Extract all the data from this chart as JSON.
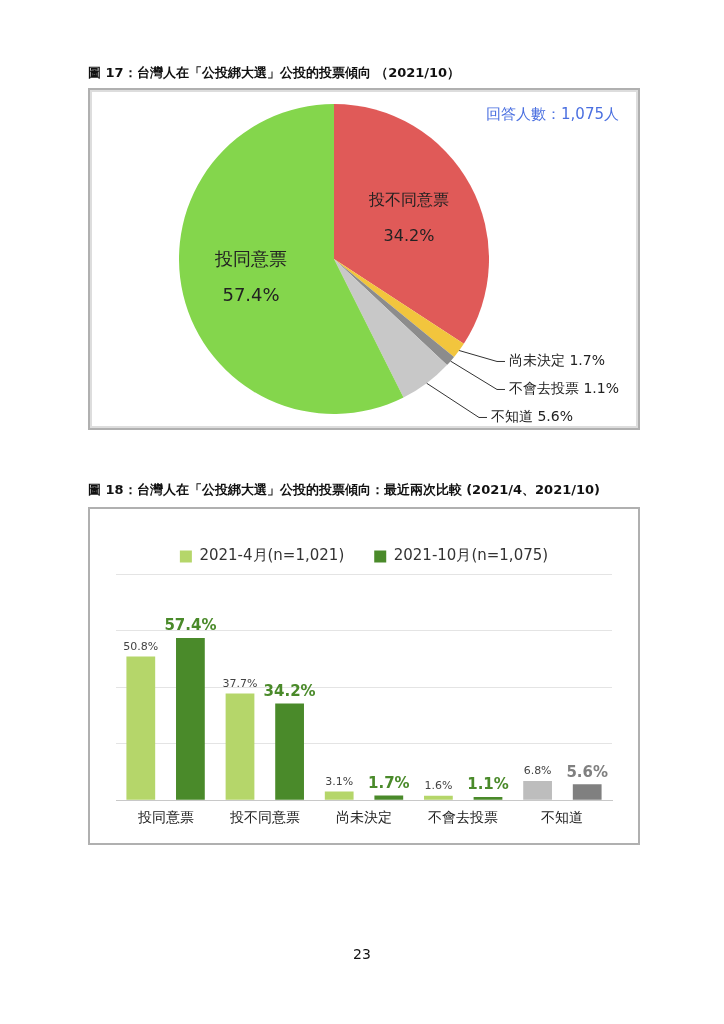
{
  "chart_data": [
    {
      "type": "pie",
      "title": "圖 17：台灣人在「公投綁大選」公投的投票傾向 （2021/10）",
      "categories": [
        "投不同意票",
        "尚未決定",
        "不會去投票",
        "不知道",
        "投同意票"
      ],
      "values": [
        34.2,
        1.7,
        1.1,
        5.6,
        57.4
      ],
      "value_labels": [
        "34.2%",
        "1.7%",
        "1.1%",
        "5.6%",
        "57.4%"
      ],
      "colors": [
        "#e05a58",
        "#f2c53d",
        "#8c8c8c",
        "#c8c8c8",
        "#84d64c"
      ],
      "annotations": [
        "回答人數：1,075人"
      ]
    },
    {
      "type": "bar",
      "title": "圖 18：台灣人在「公投綁大選」公投的投票傾向：最近兩次比較 (2021/4、2021/10)",
      "categories": [
        "投同意票",
        "投不同意票",
        "尚未決定",
        "不會去投票",
        "不知道"
      ],
      "series": [
        {
          "name": "2021-4月(n=1,021)",
          "color": "#b5d66a",
          "colors": [
            "#b5d66a",
            "#b5d66a",
            "#b5d66a",
            "#b5d66a",
            "#bdbdbd"
          ],
          "values": [
            50.8,
            37.7,
            3.1,
            1.6,
            6.8
          ],
          "value_labels": [
            "50.8%",
            "37.7%",
            "3.1%",
            "1.6%",
            "6.8%"
          ]
        },
        {
          "name": "2021-10月(n=1,075)",
          "color": "#4a8a2a",
          "colors": [
            "#4a8a2a",
            "#4a8a2a",
            "#4a8a2a",
            "#4a8a2a",
            "#808080"
          ],
          "values": [
            57.4,
            34.2,
            1.7,
            1.1,
            5.6
          ],
          "value_labels": [
            "57.4%",
            "34.2%",
            "1.7%",
            "1.1%",
            "5.6%"
          ]
        }
      ],
      "ylim": [
        0,
        80
      ],
      "yticks": [
        0,
        20,
        40,
        60,
        80
      ],
      "grid": "y",
      "legend": "top",
      "tick_labels": "x",
      "annotations": [
        "23"
      ]
    }
  ]
}
